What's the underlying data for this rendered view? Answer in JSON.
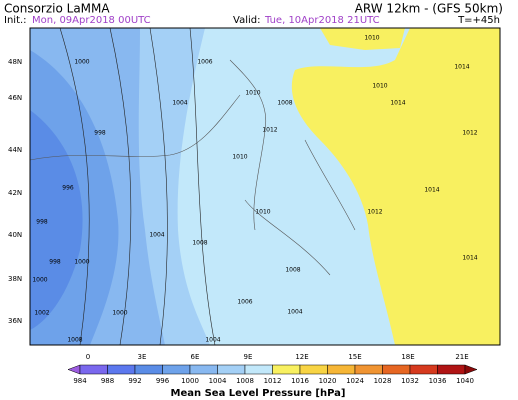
{
  "header": {
    "producer": "Consorzio LaMMA",
    "model": "ARW 12km - (GFS 50km)",
    "init_label": "Init.:",
    "init_time": "Mon, 09Apr2018 00UTC",
    "valid_label": "Valid:",
    "valid_time": "Tue, 10Apr2018 21UTC",
    "lead": "T=+45h"
  },
  "map": {
    "lat_labels": [
      "48N",
      "46N",
      "44N",
      "42N",
      "40N",
      "38N",
      "36N"
    ],
    "lon_labels": [
      "0",
      "3E",
      "6E",
      "9E",
      "12E",
      "15E",
      "18E",
      "21E"
    ],
    "isobar_labels": [
      1000,
      1006,
      1010,
      1014,
      1004,
      1010,
      1008,
      1010,
      998,
      1012,
      1014,
      1012,
      1010,
      996,
      1014,
      1010,
      1012,
      998,
      1004,
      1008,
      998,
      1000,
      1008,
      1014,
      1000,
      1002,
      1000,
      1006,
      1004,
      1008,
      1004
    ]
  },
  "legend": {
    "title": "Mean Sea Level Pressure [hPa]",
    "levels": [
      984,
      988,
      992,
      996,
      1000,
      1004,
      1008,
      1012,
      1016,
      1020,
      1024,
      1028,
      1032,
      1036,
      1040
    ],
    "colors": [
      "#9c5ce0",
      "#7a68ee",
      "#5c78ee",
      "#5a8ce6",
      "#6ea2ea",
      "#88b8f0",
      "#a4d0f6",
      "#c2e8fa",
      "#f8f060",
      "#f8d444",
      "#f6b636",
      "#f09432",
      "#e66622",
      "#d63a1e",
      "#b01414",
      "#8a0a0a"
    ]
  }
}
